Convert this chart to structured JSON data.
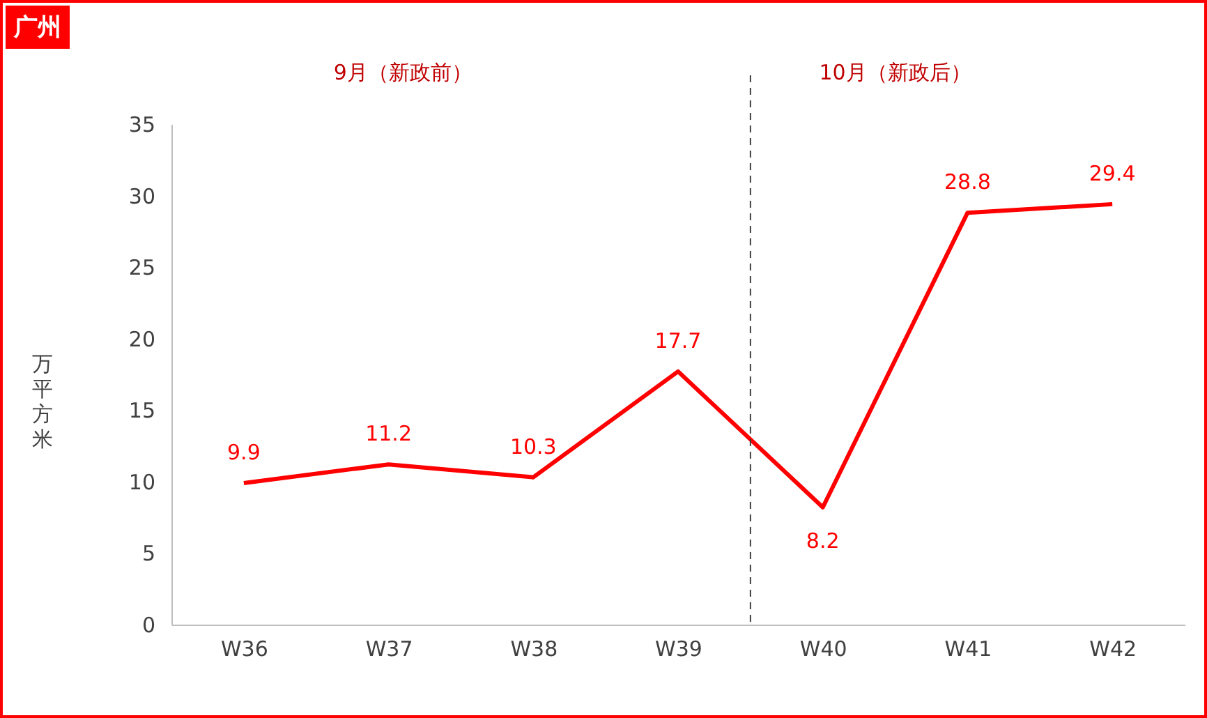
{
  "chart_data": {
    "type": "line",
    "title": "广州",
    "ylabel": "万平方米",
    "annotations": [
      "9月（新政前）",
      "10月（新政后）"
    ],
    "categories": [
      "W36",
      "W37",
      "W38",
      "W39",
      "W40",
      "W41",
      "W42"
    ],
    "series": [
      {
        "color": "#ff0000",
        "values": [
          9.9,
          11.2,
          10.3,
          17.7,
          8.2,
          28.8,
          29.4
        ]
      }
    ],
    "ylim": [
      0,
      35
    ],
    "yticks": [
      0,
      5,
      10,
      15,
      20,
      25,
      30,
      35
    ],
    "data_labels": true,
    "line_style": "solid"
  }
}
